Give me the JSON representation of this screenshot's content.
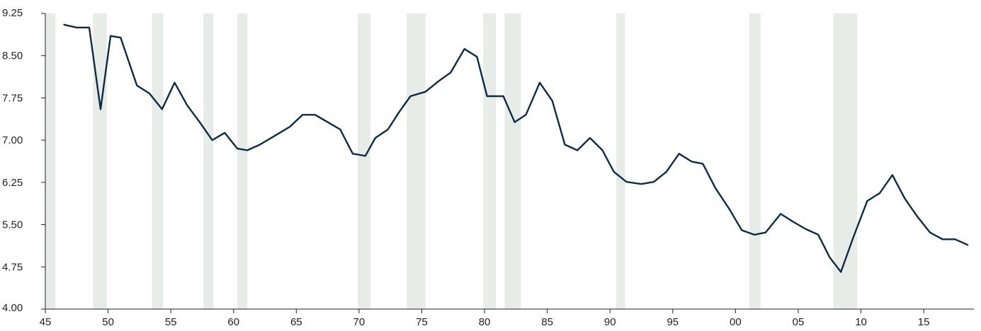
{
  "chart_data": {
    "type": "line",
    "title": "",
    "xlabel": "",
    "ylabel": "",
    "xlim": [
      1945,
      2019
    ],
    "ylim": [
      4.0,
      9.25
    ],
    "y_ticks": [
      {
        "value": 4.0,
        "label": "4.00"
      },
      {
        "value": 4.75,
        "label": "4.75"
      },
      {
        "value": 5.5,
        "label": "5.50"
      },
      {
        "value": 6.25,
        "label": "6.25"
      },
      {
        "value": 7.0,
        "label": "7.00"
      },
      {
        "value": 7.75,
        "label": "7.75"
      },
      {
        "value": 8.5,
        "label": "8.50"
      },
      {
        "value": 9.25,
        "label": "9.25"
      }
    ],
    "x_ticks": [
      {
        "value": 1945,
        "label": "45"
      },
      {
        "value": 1950,
        "label": "50"
      },
      {
        "value": 1955,
        "label": "55"
      },
      {
        "value": 1960,
        "label": "60"
      },
      {
        "value": 1965,
        "label": "65"
      },
      {
        "value": 1970,
        "label": "70"
      },
      {
        "value": 1975,
        "label": "75"
      },
      {
        "value": 1980,
        "label": "80"
      },
      {
        "value": 1985,
        "label": "85"
      },
      {
        "value": 1990,
        "label": "90"
      },
      {
        "value": 1995,
        "label": "95"
      },
      {
        "value": 2000,
        "label": "00"
      },
      {
        "value": 2005,
        "label": "05"
      },
      {
        "value": 2010,
        "label": "10"
      },
      {
        "value": 2015,
        "label": "15"
      }
    ],
    "shaded_periods": [
      {
        "start": 1945.0,
        "end": 1945.8
      },
      {
        "start": 1948.8,
        "end": 1949.9
      },
      {
        "start": 1953.5,
        "end": 1954.4
      },
      {
        "start": 1957.6,
        "end": 1958.4
      },
      {
        "start": 1960.3,
        "end": 1961.1
      },
      {
        "start": 1969.9,
        "end": 1970.9
      },
      {
        "start": 1973.8,
        "end": 1975.3
      },
      {
        "start": 1979.9,
        "end": 1980.9
      },
      {
        "start": 1981.6,
        "end": 1982.9
      },
      {
        "start": 1990.5,
        "end": 1991.2
      },
      {
        "start": 2001.1,
        "end": 2002.0
      },
      {
        "start": 2007.8,
        "end": 2009.7
      }
    ],
    "series": [
      {
        "color": "#0d2b45",
        "points": [
          [
            1946.5,
            9.05
          ],
          [
            1947.5,
            9.0
          ],
          [
            1948.5,
            9.0
          ],
          [
            1949.4,
            7.55
          ],
          [
            1950.2,
            8.85
          ],
          [
            1951.0,
            8.82
          ],
          [
            1952.3,
            7.97
          ],
          [
            1953.3,
            7.83
          ],
          [
            1954.3,
            7.55
          ],
          [
            1955.3,
            8.02
          ],
          [
            1956.3,
            7.62
          ],
          [
            1957.3,
            7.32
          ],
          [
            1958.3,
            7.0
          ],
          [
            1959.3,
            7.13
          ],
          [
            1960.3,
            6.85
          ],
          [
            1961.1,
            6.82
          ],
          [
            1962.1,
            6.92
          ],
          [
            1963.3,
            7.08
          ],
          [
            1964.5,
            7.24
          ],
          [
            1965.5,
            7.45
          ],
          [
            1966.5,
            7.45
          ],
          [
            1967.5,
            7.32
          ],
          [
            1968.5,
            7.19
          ],
          [
            1969.5,
            6.76
          ],
          [
            1970.5,
            6.72
          ],
          [
            1971.3,
            7.04
          ],
          [
            1972.3,
            7.19
          ],
          [
            1973.2,
            7.5
          ],
          [
            1974.1,
            7.78
          ],
          [
            1975.3,
            7.86
          ],
          [
            1976.3,
            8.04
          ],
          [
            1977.3,
            8.2
          ],
          [
            1978.4,
            8.62
          ],
          [
            1979.4,
            8.48
          ],
          [
            1980.2,
            7.78
          ],
          [
            1981.5,
            7.78
          ],
          [
            1982.4,
            7.32
          ],
          [
            1983.3,
            7.45
          ],
          [
            1984.4,
            8.02
          ],
          [
            1985.4,
            7.7
          ],
          [
            1986.4,
            6.92
          ],
          [
            1987.4,
            6.82
          ],
          [
            1988.4,
            7.04
          ],
          [
            1989.4,
            6.82
          ],
          [
            1990.3,
            6.44
          ],
          [
            1991.3,
            6.26
          ],
          [
            1992.5,
            6.22
          ],
          [
            1993.5,
            6.26
          ],
          [
            1994.5,
            6.44
          ],
          [
            1995.5,
            6.76
          ],
          [
            1996.5,
            6.62
          ],
          [
            1997.4,
            6.58
          ],
          [
            1998.4,
            6.15
          ],
          [
            1999.5,
            5.78
          ],
          [
            2000.5,
            5.4
          ],
          [
            2001.5,
            5.32
          ],
          [
            2002.4,
            5.36
          ],
          [
            2003.6,
            5.69
          ],
          [
            2004.6,
            5.55
          ],
          [
            2005.6,
            5.42
          ],
          [
            2006.6,
            5.32
          ],
          [
            2007.5,
            4.92
          ],
          [
            2008.4,
            4.66
          ],
          [
            2009.4,
            5.28
          ],
          [
            2010.5,
            5.92
          ],
          [
            2011.5,
            6.06
          ],
          [
            2012.5,
            6.38
          ],
          [
            2013.5,
            5.96
          ],
          [
            2014.5,
            5.64
          ],
          [
            2015.5,
            5.36
          ],
          [
            2016.5,
            5.24
          ],
          [
            2017.5,
            5.24
          ],
          [
            2018.5,
            5.14
          ]
        ]
      }
    ]
  }
}
